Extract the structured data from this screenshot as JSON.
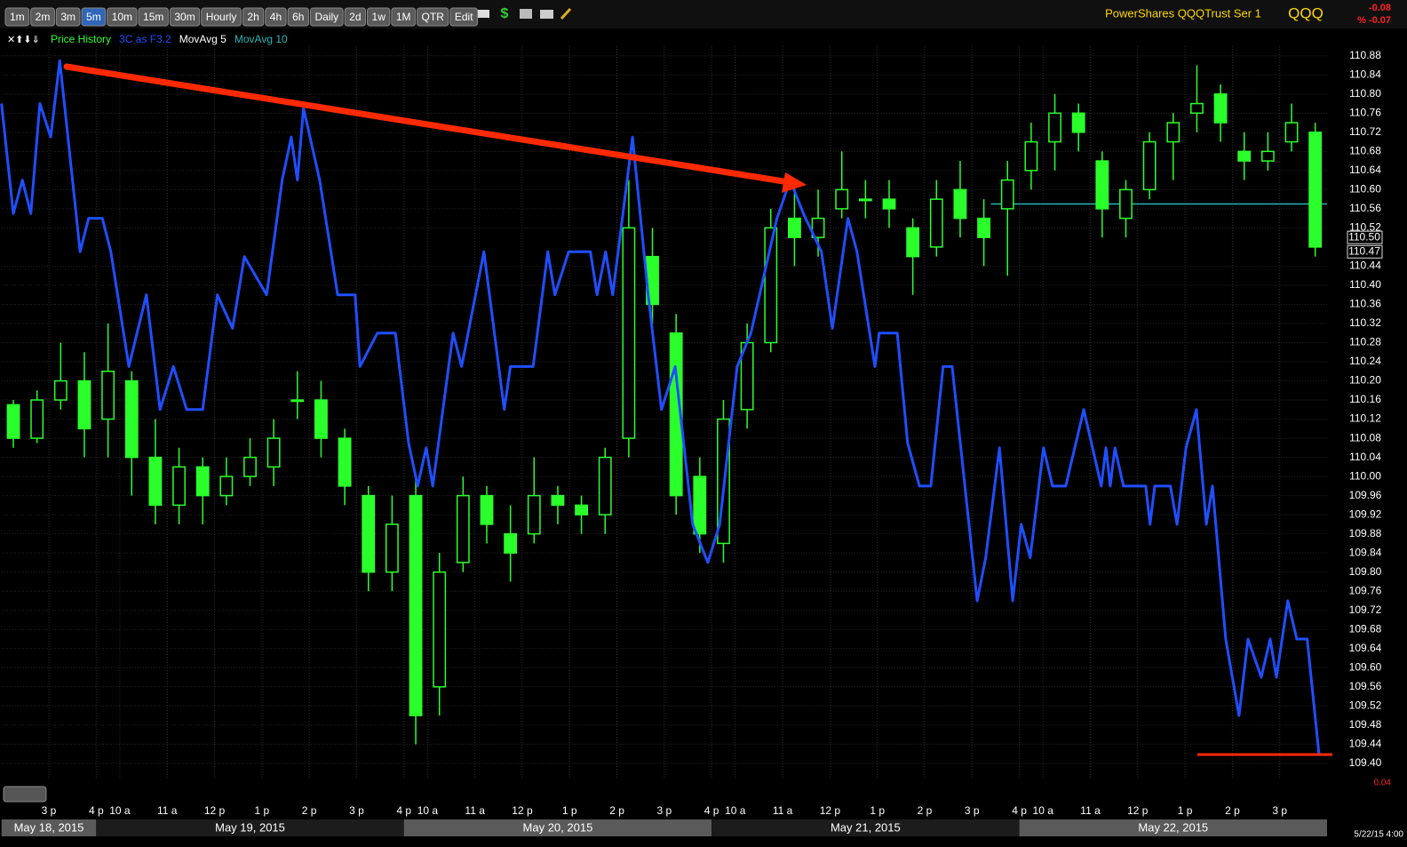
{
  "toolbar": {
    "buttons": [
      {
        "label": "1m",
        "active": false
      },
      {
        "label": "2m",
        "active": false
      },
      {
        "label": "3m",
        "active": false
      },
      {
        "label": "5m",
        "active": true
      },
      {
        "label": "10m",
        "active": false
      },
      {
        "label": "15m",
        "active": false
      },
      {
        "label": "30m",
        "active": false
      },
      {
        "label": "Hourly",
        "active": false
      },
      {
        "label": "2h",
        "active": false
      },
      {
        "label": "4h",
        "active": false
      },
      {
        "label": "6h",
        "active": false
      },
      {
        "label": "Daily",
        "active": false
      },
      {
        "label": "2d",
        "active": false
      },
      {
        "label": "1w",
        "active": false
      },
      {
        "label": "1M",
        "active": false
      },
      {
        "label": "QTR",
        "active": false
      },
      {
        "label": "Edit",
        "active": false
      }
    ]
  },
  "header": {
    "title": "PowerShares QQQTrust Ser 1",
    "symbol": "QQQ",
    "change": "-0.08",
    "pct_change": "% -0.07"
  },
  "chart_data": {
    "type": "candlestick",
    "xlim": [
      -1,
      27
    ],
    "ylim": [
      109.37,
      110.9
    ],
    "grid": true,
    "yticks": [
      {
        "value": 109.4,
        "label": "109.40"
      },
      109.44,
      109.48,
      109.52,
      109.56,
      {
        "value": 109.6,
        "label": "109.60"
      },
      109.64,
      109.68,
      109.72,
      109.76,
      {
        "value": 109.8,
        "label": "109.80"
      },
      109.84,
      109.88,
      109.92,
      109.96,
      {
        "value": 110,
        "label": "110.00"
      },
      110.04,
      110.08,
      110.12,
      110.16,
      {
        "value": 110.2,
        "label": "110.20"
      },
      110.24,
      110.28,
      110.32,
      110.36,
      {
        "value": 110.4,
        "label": "110.40"
      },
      110.44,
      110.52,
      110.56,
      {
        "value": 110.6,
        "label": "110.60"
      },
      110.64,
      110.68,
      110.72,
      110.76,
      {
        "value": 110.8,
        "label": "110.80"
      },
      110.84,
      110.88
    ],
    "xticks": [
      {
        "value": 0,
        "label": "3 p"
      },
      {
        "value": 1,
        "label": "4 p"
      },
      {
        "value": 1.5,
        "label": "10 a"
      },
      {
        "value": 2.5,
        "label": "11 a"
      },
      {
        "value": 3.5,
        "label": "12 p"
      },
      {
        "value": 4.5,
        "label": "1 p"
      },
      {
        "value": 5.5,
        "label": "2 p"
      },
      {
        "value": 6.5,
        "label": "3 p"
      },
      {
        "value": 7.5,
        "label": "4 p"
      },
      {
        "value": 8,
        "label": "10 a"
      },
      {
        "value": 9,
        "label": "11 a"
      },
      {
        "value": 10,
        "label": "12 p"
      },
      {
        "value": 11,
        "label": "1 p"
      },
      {
        "value": 12,
        "label": "2 p"
      },
      {
        "value": 13,
        "label": "3 p"
      },
      {
        "value": 14,
        "label": "4 p"
      },
      {
        "value": 14.5,
        "label": "10 a"
      },
      {
        "value": 15.5,
        "label": "11 a"
      },
      {
        "value": 16.5,
        "label": "12 p"
      },
      {
        "value": 17.5,
        "label": "1 p"
      },
      {
        "value": 18.5,
        "label": "2 p"
      },
      {
        "value": 19.5,
        "label": "3 p"
      },
      {
        "value": 20.5,
        "label": "4 p"
      },
      {
        "value": 21,
        "label": "10 a"
      },
      {
        "value": 22,
        "label": "11 a"
      },
      {
        "value": 23,
        "label": "12 p"
      },
      {
        "value": 24,
        "label": "1 p"
      },
      {
        "value": 25,
        "label": "2 p"
      },
      {
        "value": 26,
        "label": "3 p"
      }
    ],
    "sessions": [
      {
        "label": "May 18, 2015",
        "start": -1,
        "end": 1
      },
      {
        "label": "May 19, 2015",
        "start": 1,
        "end": 7.5
      },
      {
        "label": "May 20, 2015",
        "start": 7.5,
        "end": 14
      },
      {
        "label": "May 21, 2015",
        "start": 14,
        "end": 20.5
      },
      {
        "label": "May 22, 2015",
        "start": 20.5,
        "end": 27
      }
    ],
    "series": [
      {
        "name": "Price History",
        "type": "candlestick",
        "color": "#2bff2b",
        "x": [
          -0.75,
          -0.25,
          0.25,
          0.75,
          1.25,
          1.75,
          2.25,
          2.75,
          3.25,
          3.75,
          4.25,
          4.75,
          5.25,
          5.75,
          6.25,
          6.75,
          7.25,
          7.75,
          8.25,
          8.75,
          9.25,
          9.75,
          10.25,
          10.75,
          11.25,
          11.75,
          12.25,
          12.75,
          13.25,
          13.75,
          14.25,
          14.75,
          15.25,
          15.75,
          16.25,
          16.75,
          17.25,
          17.75,
          18.25,
          18.75,
          19.25,
          19.75,
          20.25,
          20.75,
          21.25,
          21.75,
          22.25,
          22.75,
          23.25,
          23.75,
          24.25,
          24.75,
          25.25,
          25.75,
          26.25,
          26.75
        ],
        "open": [
          110.15,
          110.08,
          110.16,
          110.2,
          110.12,
          110.2,
          110.04,
          109.94,
          110.02,
          109.96,
          110,
          110.02,
          110.16,
          110.16,
          110.08,
          109.96,
          109.8,
          109.96,
          109.56,
          109.82,
          109.96,
          109.88,
          109.88,
          109.96,
          109.94,
          109.92,
          110.08,
          110.46,
          110.3,
          110,
          109.86,
          110.14,
          110.28,
          110.54,
          110.5,
          110.56,
          110.58,
          110.58,
          110.52,
          110.48,
          110.6,
          110.54,
          110.56,
          110.64,
          110.7,
          110.76,
          110.66,
          110.54,
          110.6,
          110.7,
          110.76,
          110.8,
          110.68,
          110.66,
          110.7,
          110.72
        ],
        "high": [
          110.16,
          110.18,
          110.28,
          110.26,
          110.32,
          110.22,
          110.12,
          110.06,
          110.04,
          110.04,
          110.08,
          110.12,
          110.22,
          110.2,
          110.1,
          109.98,
          109.96,
          110,
          109.84,
          110,
          109.98,
          109.94,
          110.04,
          109.98,
          109.96,
          110.06,
          110.62,
          110.52,
          110.34,
          110.04,
          110.16,
          110.32,
          110.56,
          110.62,
          110.6,
          110.68,
          110.62,
          110.62,
          110.54,
          110.62,
          110.66,
          110.58,
          110.66,
          110.74,
          110.8,
          110.78,
          110.68,
          110.62,
          110.72,
          110.76,
          110.86,
          110.82,
          110.72,
          110.72,
          110.78,
          110.74
        ],
        "low": [
          110.06,
          110.07,
          110.14,
          110.04,
          110.04,
          109.96,
          109.9,
          109.9,
          109.9,
          109.94,
          109.98,
          109.98,
          110.12,
          110.04,
          109.94,
          109.76,
          109.76,
          109.44,
          109.5,
          109.8,
          109.86,
          109.78,
          109.86,
          109.9,
          109.88,
          109.88,
          110.04,
          110.32,
          109.92,
          109.84,
          109.82,
          110.1,
          110.26,
          110.44,
          110.46,
          110.54,
          110.54,
          110.52,
          110.38,
          110.46,
          110.5,
          110.44,
          110.42,
          110.6,
          110.64,
          110.68,
          110.5,
          110.5,
          110.58,
          110.62,
          110.72,
          110.7,
          110.62,
          110.64,
          110.68,
          110.46
        ],
        "close": [
          110.08,
          110.16,
          110.2,
          110.1,
          110.22,
          110.04,
          109.94,
          110.02,
          109.96,
          110,
          110.04,
          110.08,
          110.16,
          110.08,
          109.98,
          109.8,
          109.9,
          109.5,
          109.8,
          109.96,
          109.9,
          109.84,
          109.96,
          109.94,
          109.92,
          110.04,
          110.52,
          110.36,
          109.96,
          109.88,
          110.12,
          110.28,
          110.52,
          110.5,
          110.54,
          110.6,
          110.58,
          110.56,
          110.46,
          110.58,
          110.54,
          110.5,
          110.62,
          110.7,
          110.76,
          110.72,
          110.56,
          110.6,
          110.7,
          110.74,
          110.78,
          110.74,
          110.66,
          110.68,
          110.74,
          110.48
        ]
      },
      {
        "name": "3C as F3.2",
        "type": "line",
        "color": "#1f4fff",
        "x": [
          -1,
          -0.75,
          -0.56,
          -0.38,
          -0.19,
          0.04,
          0.23,
          0.66,
          0.84,
          1.13,
          1.31,
          1.69,
          2.06,
          2.35,
          2.63,
          2.91,
          3.25,
          3.56,
          3.88,
          4.13,
          4.6,
          4.93,
          5.12,
          5.25,
          5.38,
          5.72,
          6.1,
          6.47,
          6.57,
          6.94,
          7.32,
          7.6,
          7.79,
          7.97,
          8.11,
          8.54,
          8.72,
          9.19,
          9.62,
          9.75,
          10.23,
          10.54,
          10.69,
          10.98,
          11.44,
          11.58,
          11.76,
          11.91,
          12.33,
          12.66,
          12.94,
          13.23,
          13.6,
          13.92,
          14.17,
          14.54,
          14.83,
          15.38,
          15.66,
          15.94,
          16.32,
          16.55,
          16.88,
          17.07,
          17.45,
          17.54,
          17.92,
          18.14,
          18.39,
          18.63,
          18.89,
          19.08,
          19.61,
          19.79,
          20.08,
          20.36,
          20.54,
          20.73,
          21.01,
          21.2,
          21.48,
          21.86,
          22.23,
          22.33,
          22.42,
          22.52,
          22.7,
          23.17,
          23.26,
          23.36,
          23.69,
          23.83,
          24.02,
          24.24,
          24.45,
          24.58,
          24.86,
          25.14,
          25.33,
          25.61,
          25.8,
          25.93,
          26.17,
          26.36,
          26.58,
          26.83
        ],
        "values": [
          110.78,
          110.55,
          110.62,
          110.55,
          110.78,
          110.71,
          110.87,
          110.47,
          110.54,
          110.54,
          110.47,
          110.23,
          110.38,
          110.14,
          110.23,
          110.14,
          110.14,
          110.38,
          110.31,
          110.46,
          110.38,
          110.62,
          110.71,
          110.62,
          110.77,
          110.62,
          110.38,
          110.38,
          110.23,
          110.3,
          110.3,
          110.07,
          109.98,
          110.06,
          109.98,
          110.3,
          110.23,
          110.47,
          110.14,
          110.23,
          110.23,
          110.47,
          110.38,
          110.47,
          110.47,
          110.38,
          110.47,
          110.38,
          110.71,
          110.38,
          110.14,
          110.23,
          109.9,
          109.82,
          109.9,
          110.23,
          110.3,
          110.54,
          110.62,
          110.55,
          110.47,
          110.31,
          110.54,
          110.47,
          110.23,
          110.3,
          110.3,
          110.07,
          109.98,
          109.98,
          110.23,
          110.23,
          109.74,
          109.83,
          110.06,
          109.74,
          109.9,
          109.83,
          110.06,
          109.98,
          109.98,
          110.14,
          109.98,
          110.06,
          109.98,
          110.06,
          109.98,
          109.98,
          109.9,
          109.98,
          109.98,
          109.9,
          110.06,
          110.14,
          109.9,
          109.98,
          109.66,
          109.5,
          109.66,
          109.58,
          109.66,
          109.58,
          109.74,
          109.66,
          109.66,
          109.42
        ]
      },
      {
        "name": "MovAvg 5",
        "type": "line",
        "color": "#ffffff",
        "x": [],
        "values": []
      },
      {
        "name": "MovAvg 10",
        "type": "line",
        "color": "#2fb5b5",
        "x": [
          19.9,
          27
        ],
        "values": [
          110.57,
          110.57
        ]
      }
    ],
    "price_markers": [
      {
        "value": 110.5,
        "label": "110.50"
      },
      {
        "value": 110.47,
        "label": "110.47"
      }
    ],
    "scale_change": "0.04",
    "last_time": "5/22/15 4:00"
  }
}
